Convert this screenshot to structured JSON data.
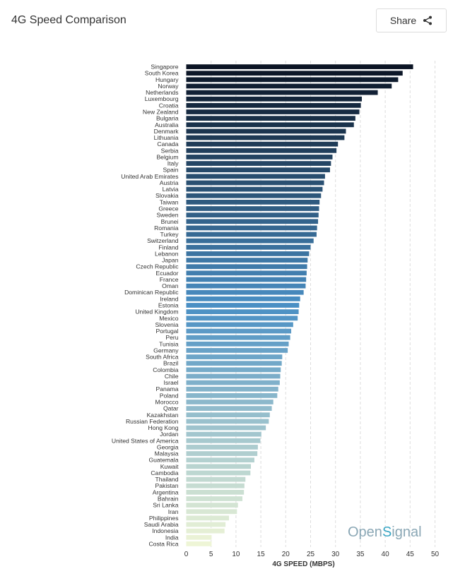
{
  "header": {
    "title": "4G Speed Comparison",
    "share_label": "Share"
  },
  "brand": {
    "name": "OpenSignal"
  },
  "colors": {
    "bar_start": "#0b1424",
    "bar_mid": "#4a8fc4",
    "bar_end": "#eef5d6",
    "grid": "#dddddd"
  },
  "chart_data": {
    "type": "bar",
    "orientation": "horizontal",
    "xlabel": "4G SPEED (MBPS)",
    "xlim": [
      0,
      50
    ],
    "xticks": [
      0,
      5,
      10,
      15,
      20,
      25,
      30,
      35,
      40,
      45,
      50
    ],
    "grid": "vertical dashed",
    "categories": [
      "Singapore",
      "South Korea",
      "Hungary",
      "Norway",
      "Netherlands",
      "Luxembourg",
      "Croatia",
      "New Zealand",
      "Bulgaria",
      "Australia",
      "Denmark",
      "Lithuania",
      "Canada",
      "Serbia",
      "Belgium",
      "Italy",
      "Spain",
      "United Arab Emirates",
      "Austria",
      "Latvia",
      "Slovakia",
      "Taiwan",
      "Greece",
      "Sweden",
      "Brunei",
      "Romania",
      "Turkey",
      "Switzerland",
      "Finland",
      "Lebanon",
      "Japan",
      "Czech Republic",
      "Ecuador",
      "France",
      "Oman",
      "Dominican Republic",
      "Ireland",
      "Estonia",
      "United Kingdom",
      "Mexico",
      "Slovenia",
      "Portugal",
      "Peru",
      "Tunisia",
      "Germany",
      "South Africa",
      "Brazil",
      "Colombia",
      "Chile",
      "Israel",
      "Panama",
      "Poland",
      "Morocco",
      "Qatar",
      "Kazakhstan",
      "Russian Federation",
      "Hong Kong",
      "Jordan",
      "United States of America",
      "Georgia",
      "Malaysia",
      "Guatemala",
      "Kuwait",
      "Cambodia",
      "Thailand",
      "Pakistan",
      "Argentina",
      "Bahrain",
      "Sri Lanka",
      "Iran",
      "Philippines",
      "Saudi Arabia",
      "Indonesia",
      "India",
      "Costa Rica"
    ],
    "values": [
      45.6,
      43.5,
      42.6,
      41.3,
      38.5,
      35.3,
      35.1,
      34.8,
      34.0,
      33.7,
      32.1,
      31.8,
      30.5,
      30.2,
      29.4,
      29.1,
      28.9,
      27.9,
      27.7,
      27.4,
      27.1,
      26.8,
      26.7,
      26.6,
      26.5,
      26.3,
      26.2,
      25.6,
      25.0,
      24.7,
      24.4,
      24.3,
      24.2,
      24.1,
      24.0,
      23.6,
      22.9,
      22.7,
      22.6,
      22.4,
      21.5,
      21.1,
      20.9,
      20.6,
      20.4,
      19.3,
      19.2,
      19.0,
      18.9,
      18.8,
      18.5,
      18.3,
      17.5,
      17.2,
      16.8,
      16.6,
      16.0,
      15.1,
      14.9,
      14.4,
      14.3,
      13.7,
      13.0,
      12.9,
      11.9,
      11.7,
      11.6,
      11.3,
      10.4,
      10.2,
      8.6,
      7.9,
      7.7,
      5.1,
      5.1
    ]
  }
}
